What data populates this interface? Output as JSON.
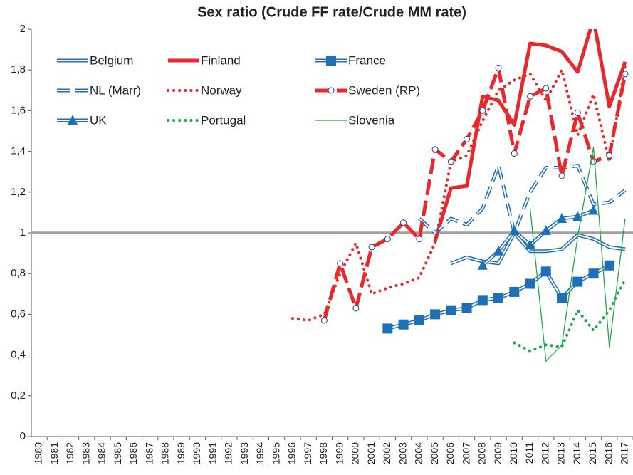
{
  "chart_data": {
    "type": "line",
    "title": "Sex ratio (Crude FF rate/Crude MM rate)",
    "categories": [
      "1980",
      "1981",
      "1982",
      "1983",
      "1984",
      "1985",
      "1986",
      "1987",
      "1988",
      "1989",
      "1990",
      "1991",
      "1992",
      "1993",
      "1994",
      "1995",
      "1996",
      "1997",
      "1998",
      "1999",
      "2000",
      "2001",
      "2002",
      "2003",
      "2004",
      "2005",
      "2006",
      "2007",
      "2008",
      "2009",
      "2010",
      "2011",
      "2012",
      "2013",
      "2014",
      "2015",
      "2016",
      "2017"
    ],
    "ylim": [
      0,
      2
    ],
    "yticks": [
      0,
      {
        "value": 0.2,
        "label": "0,2"
      },
      {
        "value": 0.4,
        "label": "0,4"
      },
      {
        "value": 0.6,
        "label": "0,6"
      },
      {
        "value": 0.8,
        "label": "0,8"
      },
      1,
      {
        "value": 1.2,
        "label": "1,2"
      },
      {
        "value": 1.4,
        "label": "1,4"
      },
      {
        "value": 1.6,
        "label": "1,6"
      },
      {
        "value": 1.8,
        "label": "1,8"
      },
      2
    ],
    "hline": 1,
    "hline_color": "#a0a0a0",
    "series": [
      {
        "name": "Belgium",
        "color": "#1f6fb8",
        "style": "double",
        "values": [
          null,
          null,
          null,
          null,
          null,
          null,
          null,
          null,
          null,
          null,
          null,
          null,
          null,
          null,
          null,
          null,
          null,
          null,
          null,
          null,
          null,
          null,
          null,
          null,
          null,
          null,
          0.85,
          0.88,
          0.86,
          0.85,
          1.0,
          0.91,
          0.91,
          0.92,
          0.99,
          0.97,
          0.93,
          0.92
        ]
      },
      {
        "name": "Finland",
        "color": "#e8282b",
        "style": "thick",
        "values": [
          null,
          null,
          null,
          null,
          null,
          null,
          null,
          null,
          null,
          null,
          null,
          null,
          null,
          null,
          null,
          null,
          null,
          null,
          null,
          null,
          null,
          null,
          null,
          null,
          null,
          0.96,
          1.22,
          1.23,
          1.67,
          1.65,
          1.53,
          1.93,
          1.92,
          1.89,
          1.79,
          2.05,
          1.62,
          1.84
        ]
      },
      {
        "name": "France",
        "color": "#1f6fb8",
        "style": "double",
        "marker": "square",
        "values": [
          null,
          null,
          null,
          null,
          null,
          null,
          null,
          null,
          null,
          null,
          null,
          null,
          null,
          null,
          null,
          null,
          null,
          null,
          null,
          null,
          null,
          null,
          0.53,
          0.55,
          0.57,
          0.6,
          0.62,
          0.63,
          0.67,
          0.68,
          0.71,
          0.75,
          0.81,
          0.68,
          0.76,
          0.8,
          0.84,
          null
        ]
      },
      {
        "name": "NL (Marr)",
        "color": "#1f6fb8",
        "style": "double-dash",
        "values": [
          null,
          null,
          null,
          null,
          null,
          null,
          null,
          null,
          null,
          null,
          null,
          null,
          null,
          null,
          null,
          null,
          null,
          null,
          null,
          null,
          null,
          null,
          null,
          null,
          1.07,
          1.0,
          1.07,
          1.04,
          1.12,
          1.33,
          1.0,
          1.2,
          1.32,
          1.32,
          1.33,
          1.14,
          1.15,
          1.21
        ]
      },
      {
        "name": "Norway",
        "color": "#e8282b",
        "style": "dots",
        "values": [
          null,
          null,
          null,
          null,
          null,
          null,
          null,
          null,
          null,
          null,
          null,
          null,
          null,
          null,
          null,
          null,
          0.58,
          0.57,
          0.6,
          0.8,
          0.95,
          0.7,
          0.73,
          0.75,
          0.78,
          0.95,
          1.35,
          1.38,
          1.55,
          1.7,
          1.75,
          1.78,
          1.65,
          1.8,
          1.48,
          1.68,
          1.35,
          1.82
        ]
      },
      {
        "name": "Sweden (RP)",
        "color": "#e8282b",
        "style": "thick-dash",
        "marker": "circle",
        "values": [
          null,
          null,
          null,
          null,
          null,
          null,
          null,
          null,
          null,
          null,
          null,
          null,
          null,
          null,
          null,
          null,
          null,
          null,
          0.57,
          0.85,
          0.63,
          0.93,
          0.97,
          1.05,
          0.97,
          1.41,
          1.35,
          1.46,
          1.6,
          1.81,
          1.39,
          1.67,
          1.71,
          1.28,
          1.59,
          1.35,
          1.38,
          1.78
        ]
      },
      {
        "name": "UK",
        "color": "#1f6fb8",
        "style": "double",
        "marker": "triangle",
        "values": [
          null,
          null,
          null,
          null,
          null,
          null,
          null,
          null,
          null,
          null,
          null,
          null,
          null,
          null,
          null,
          null,
          null,
          null,
          null,
          null,
          null,
          null,
          null,
          null,
          null,
          null,
          null,
          null,
          0.84,
          0.91,
          1.01,
          0.94,
          1.01,
          1.07,
          1.08,
          1.11,
          null,
          null
        ]
      },
      {
        "name": "Portugal",
        "color": "#21a84a",
        "style": "dots",
        "values": [
          null,
          null,
          null,
          null,
          null,
          null,
          null,
          null,
          null,
          null,
          null,
          null,
          null,
          null,
          null,
          null,
          null,
          null,
          null,
          null,
          null,
          null,
          null,
          null,
          null,
          null,
          null,
          null,
          null,
          null,
          0.46,
          0.42,
          0.45,
          0.44,
          0.62,
          0.52,
          0.62,
          0.77
        ]
      },
      {
        "name": "Slovenia",
        "color": "#21a84a",
        "style": "thin",
        "values": [
          null,
          null,
          null,
          null,
          null,
          null,
          null,
          null,
          null,
          null,
          null,
          null,
          null,
          null,
          null,
          null,
          null,
          null,
          null,
          null,
          null,
          null,
          null,
          null,
          null,
          null,
          null,
          null,
          null,
          null,
          null,
          1.12,
          0.37,
          0.45,
          0.98,
          1.42,
          0.44,
          1.07
        ]
      }
    ]
  }
}
